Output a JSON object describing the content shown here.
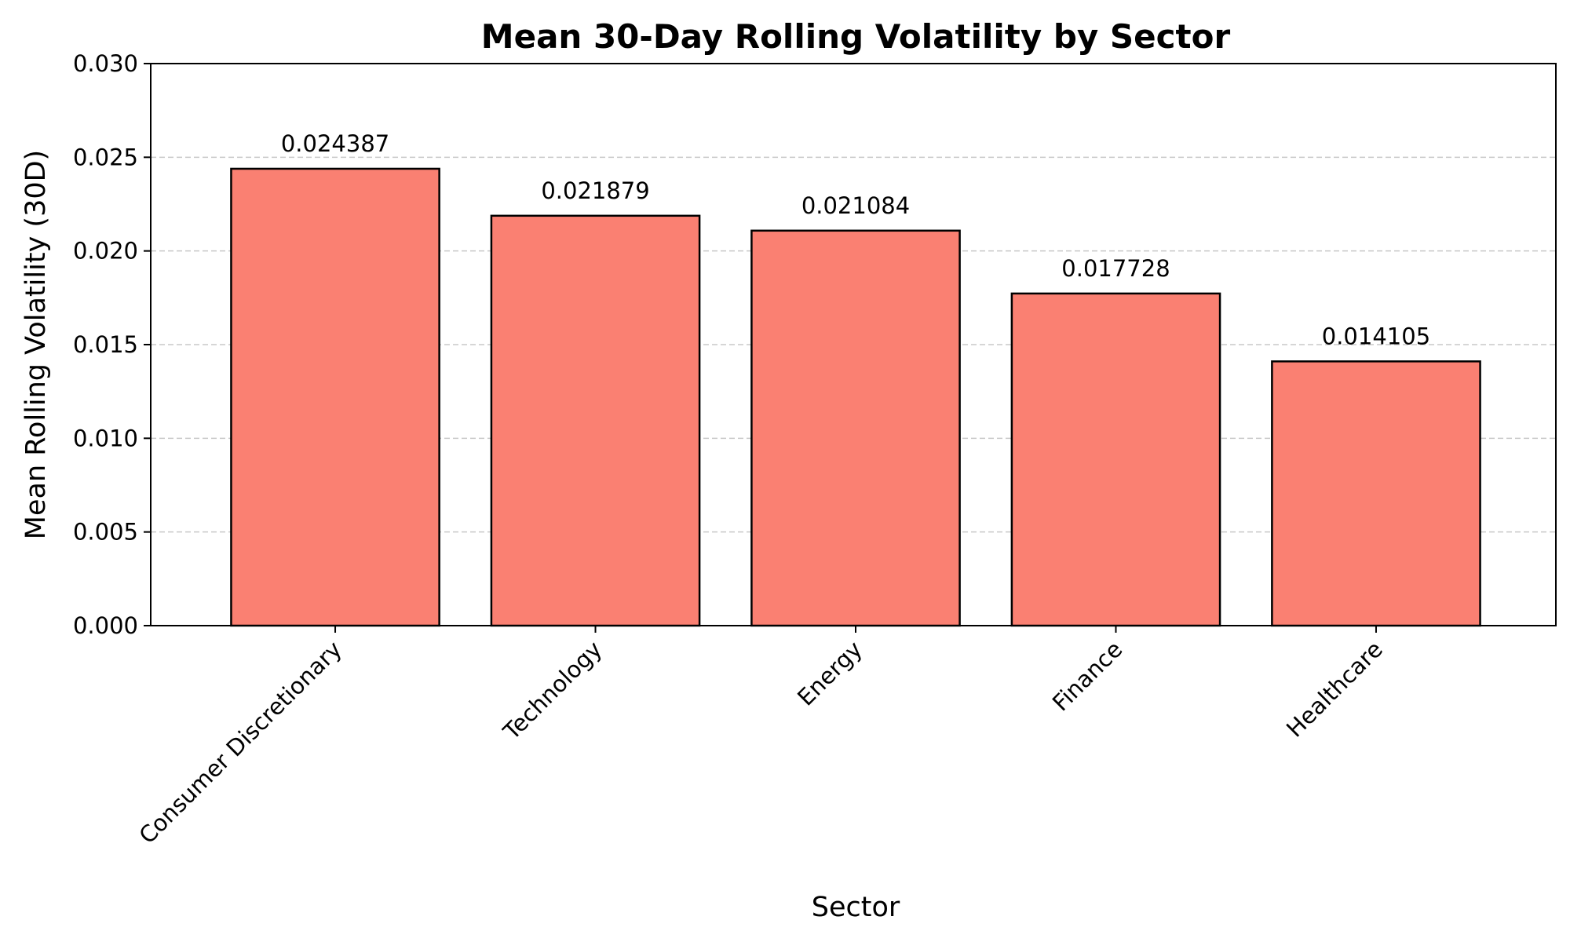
{
  "chart_data": {
    "type": "bar",
    "title": "Mean 30-Day Rolling Volatility by Sector",
    "xlabel": "Sector",
    "ylabel": "Mean Rolling Volatility (30D)",
    "categories": [
      "Consumer Discretionary",
      "Technology",
      "Energy",
      "Finance",
      "Healthcare"
    ],
    "values": [
      0.024387,
      0.021879,
      0.021084,
      0.017728,
      0.014105
    ],
    "value_labels": [
      "0.024387",
      "0.021879",
      "0.021084",
      "0.017728",
      "0.014105"
    ],
    "ylim": [
      0,
      0.03
    ],
    "yticks": [
      0,
      0.005,
      0.01,
      0.015,
      0.02,
      0.025,
      0.03
    ],
    "ytick_labels": [
      "0.000",
      "0.005",
      "0.010",
      "0.015",
      "0.020",
      "0.025",
      "0.030"
    ],
    "grid": "y-dashed",
    "legend": "none",
    "colors": {
      "bar_fill": "#fa8072",
      "bar_edge": "#000000",
      "grid": "#c8c8c8",
      "axis": "#000000"
    }
  }
}
